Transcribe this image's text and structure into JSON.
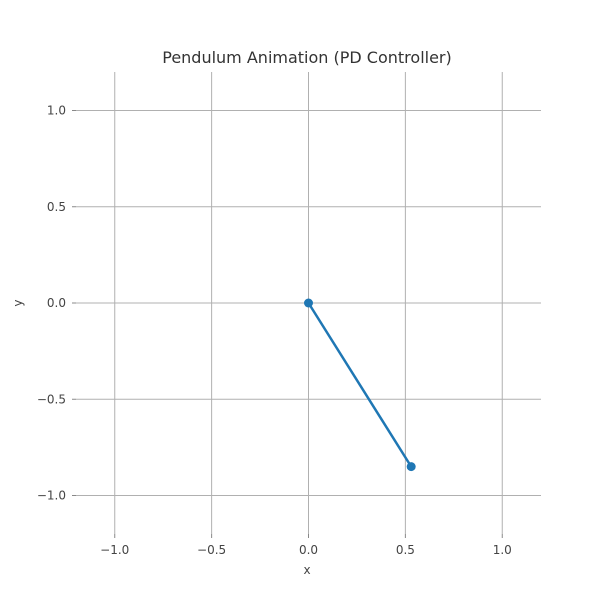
{
  "chart_data": {
    "type": "line",
    "title": "Pendulum Animation (PD Controller)",
    "xlabel": "x",
    "ylabel": "y",
    "xlim": [
      -1.2,
      1.2
    ],
    "ylim": [
      -1.2,
      1.2
    ],
    "grid": true,
    "xticks": [
      -1.0,
      -0.5,
      0.0,
      0.5,
      1.0
    ],
    "yticks": [
      -1.0,
      -0.5,
      0.0,
      0.5,
      1.0
    ],
    "xtick_labels": [
      "−1.0",
      "−0.5",
      "0.0",
      "0.5",
      "1.0"
    ],
    "ytick_labels": [
      "−1.0",
      "−0.5",
      "0.0",
      "0.5",
      "1.0"
    ],
    "series": [
      {
        "x": [
          0.0,
          0.53
        ],
        "y": [
          0.0,
          -0.85
        ],
        "color": "#1f77b4",
        "marker": "circle"
      }
    ]
  }
}
